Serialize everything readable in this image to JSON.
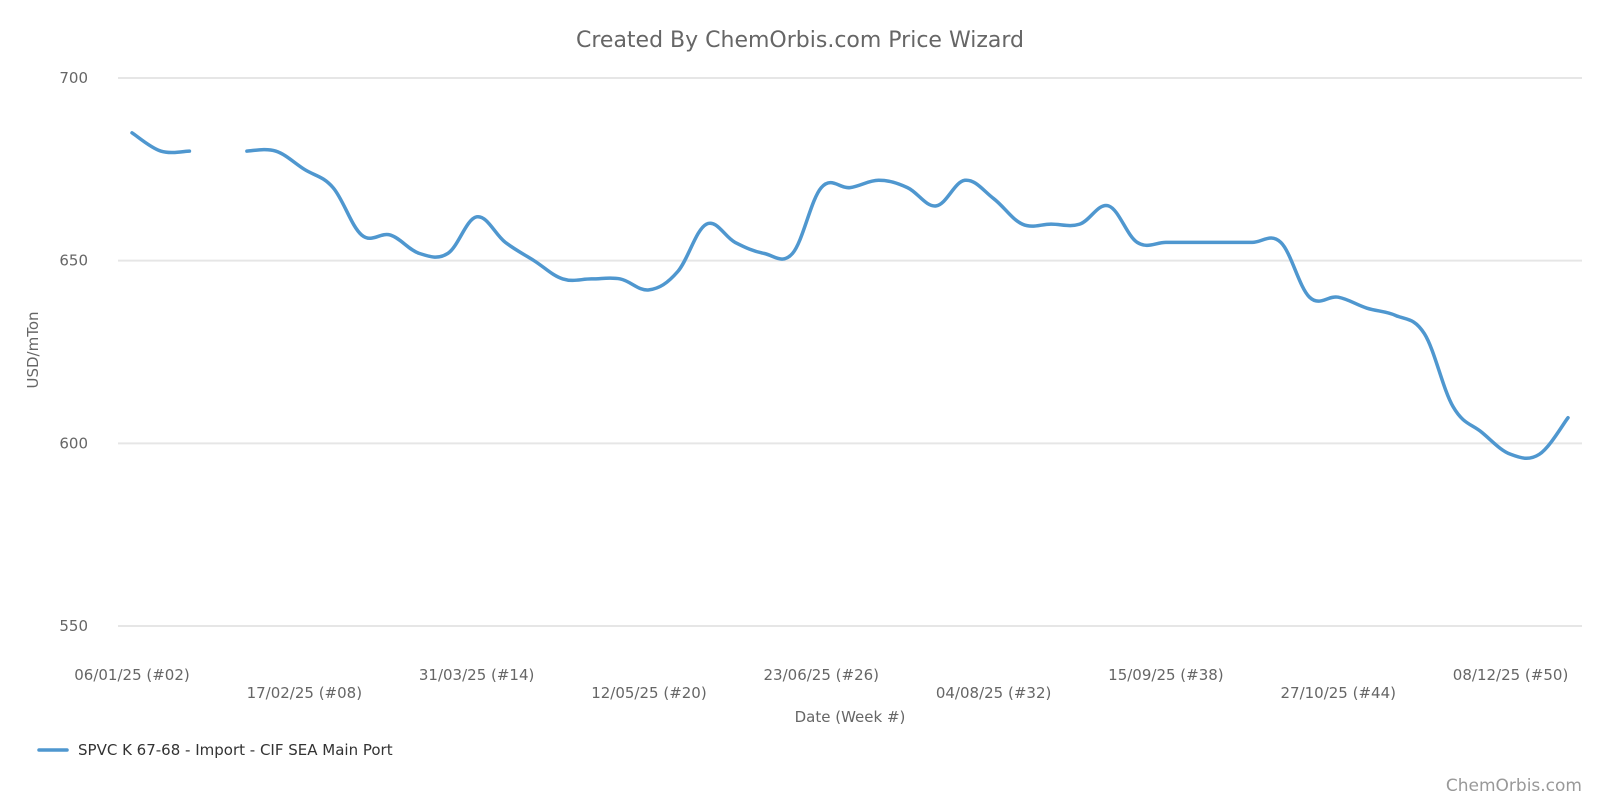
{
  "chart_data": {
    "type": "line",
    "title": "Created By ChemOrbis.com Price Wizard",
    "xlabel": "Date (Week #)",
    "ylabel": "USD/mTon",
    "ylim": [
      550,
      700
    ],
    "yticks": [
      550,
      600,
      650,
      700
    ],
    "grid": true,
    "legend_position": "bottom-left",
    "x_tick_labels": [
      "06/01/25 (#02)",
      "17/02/25 (#08)",
      "31/03/25 (#14)",
      "12/05/25 (#20)",
      "23/06/25 (#26)",
      "04/08/25 (#32)",
      "15/09/25 (#38)",
      "27/10/25 (#44)",
      "08/12/25 (#50)"
    ],
    "x_tick_weeks": [
      2,
      8,
      14,
      20,
      26,
      32,
      38,
      44,
      50
    ],
    "series": [
      {
        "name": "SPVC K 67-68 - Import - CIF SEA Main Port",
        "color": "#4f97cf",
        "weeks": [
          2,
          3,
          4,
          5,
          6,
          7,
          8,
          9,
          10,
          11,
          12,
          13,
          14,
          15,
          16,
          17,
          18,
          19,
          20,
          21,
          22,
          23,
          24,
          25,
          26,
          27,
          28,
          29,
          30,
          31,
          32,
          33,
          34,
          35,
          36,
          37,
          38,
          39,
          40,
          41,
          42,
          43,
          44,
          45,
          46,
          47,
          48,
          49,
          50,
          51,
          52
        ],
        "values": [
          685,
          680,
          680,
          null,
          680,
          680,
          675,
          670,
          657,
          657,
          652,
          652,
          662,
          655,
          650,
          645,
          645,
          645,
          642,
          647,
          660,
          655,
          652,
          652,
          670,
          670,
          672,
          670,
          665,
          672,
          667,
          660,
          660,
          660,
          665,
          655,
          655,
          655,
          655,
          655,
          655,
          640,
          640,
          637,
          635,
          630,
          610,
          603,
          597,
          597,
          607
        ]
      }
    ]
  },
  "credit": "ChemOrbis.com"
}
